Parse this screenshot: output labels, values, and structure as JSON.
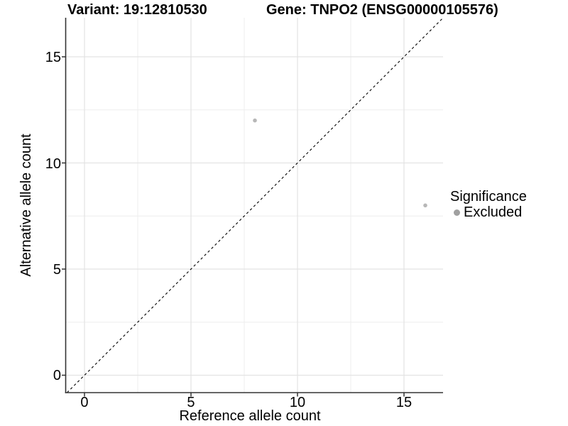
{
  "chart_data": {
    "type": "scatter",
    "titles": {
      "variant": "Variant: 19:12810530",
      "gene": "Gene: TNPO2 (ENSG00000105576)"
    },
    "xlabel": "Reference allele count",
    "ylabel": "Alternative allele count",
    "xlim": [
      -0.883,
      16.833
    ],
    "ylim": [
      -0.82,
      16.84
    ],
    "x_major_ticks": [
      0,
      5,
      10,
      15
    ],
    "x_minor_ticks": [
      2.5,
      7.5,
      12.5
    ],
    "y_major_ticks": [
      0,
      5,
      10,
      15
    ],
    "y_minor_ticks": [
      2.5,
      7.5,
      12.5
    ],
    "grid": true,
    "legend_position": "right",
    "identity_line": {
      "type": "y=x",
      "style": "dashed",
      "color": "#000000"
    },
    "series": [
      {
        "name": "Excluded",
        "marker": "circle",
        "color": "#b7b7b7",
        "points": [
          {
            "x": 8,
            "y": 12
          },
          {
            "x": 16,
            "y": 8
          }
        ]
      }
    ],
    "legend": {
      "title": "Significance",
      "items": [
        {
          "label": "Excluded",
          "color": "#a0a0a0"
        }
      ]
    },
    "colors": {
      "background": "#ffffff",
      "grid_major": "#e3e3e3",
      "grid_minor": "#eeeeee",
      "axis_line": "#333333",
      "tick_mark": "#333333",
      "text": "#000000"
    }
  }
}
